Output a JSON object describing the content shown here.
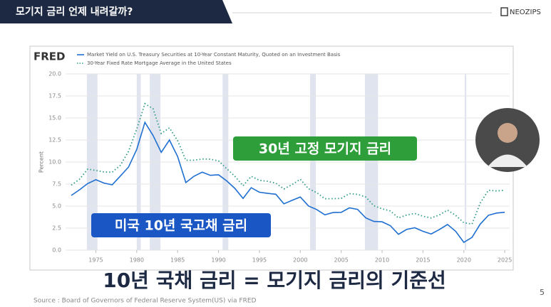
{
  "header": {
    "title": "모기지 금리 언제 내려갈까?",
    "brand": "NEOZIPS"
  },
  "chart_data": {
    "type": "line",
    "logo": "FRED",
    "y_label": "Percent",
    "x": [
      1972,
      1973,
      1974,
      1975,
      1976,
      1977,
      1978,
      1979,
      1980,
      1981,
      1982,
      1983,
      1984,
      1985,
      1986,
      1987,
      1988,
      1989,
      1990,
      1991,
      1992,
      1993,
      1994,
      1995,
      1996,
      1997,
      1998,
      1999,
      2000,
      2001,
      2002,
      2003,
      2004,
      2005,
      2006,
      2007,
      2008,
      2009,
      2010,
      2011,
      2012,
      2013,
      2014,
      2015,
      2016,
      2017,
      2018,
      2019,
      2020,
      2021,
      2022,
      2023,
      2024,
      2025
    ],
    "series": [
      {
        "name": "Market Yield on U.S. Treasury Securities at 10-Year Constant Maturity, Quoted on an Investment Basis",
        "color": "#1f6fd1",
        "style": "solid",
        "values": [
          6.21,
          6.85,
          7.56,
          7.99,
          7.61,
          7.42,
          8.41,
          9.43,
          11.43,
          14.5,
          13.01,
          11.1,
          12.5,
          10.62,
          7.67,
          8.39,
          8.85,
          8.49,
          8.55,
          7.86,
          7.01,
          5.87,
          7.09,
          6.57,
          6.44,
          6.35,
          5.26,
          5.65,
          6.03,
          5.02,
          4.61,
          4.01,
          4.27,
          4.29,
          4.8,
          4.63,
          3.66,
          3.26,
          3.22,
          2.78,
          1.8,
          2.35,
          2.54,
          2.14,
          1.84,
          2.33,
          2.91,
          2.14,
          0.89,
          1.45,
          2.95,
          3.96,
          4.21,
          4.3
        ]
      },
      {
        "name": "30-Year Fixed Rate Mortgage Average in the United States",
        "color": "#2f9a86",
        "style": "dotted",
        "values": [
          7.38,
          8.04,
          9.19,
          9.05,
          8.87,
          8.85,
          9.64,
          11.2,
          13.74,
          16.63,
          16.04,
          13.24,
          13.88,
          12.43,
          10.19,
          10.21,
          10.34,
          10.32,
          10.13,
          9.25,
          8.39,
          7.31,
          8.38,
          7.93,
          7.81,
          7.6,
          6.94,
          7.44,
          8.05,
          6.97,
          6.54,
          5.83,
          5.84,
          5.87,
          6.41,
          6.34,
          6.03,
          5.04,
          4.69,
          4.45,
          3.66,
          3.98,
          4.17,
          3.85,
          3.65,
          3.99,
          4.54,
          3.94,
          3.11,
          2.96,
          5.34,
          6.81,
          6.72,
          6.8
        ]
      }
    ],
    "recessions": [
      [
        1973.9,
        1975.2
      ],
      [
        1980.0,
        1980.5
      ],
      [
        1981.6,
        1982.9
      ],
      [
        1990.5,
        1991.2
      ],
      [
        2001.2,
        2001.9
      ],
      [
        2007.9,
        2009.5
      ],
      [
        2020.1,
        2020.3
      ]
    ],
    "xlim": [
      1971.3,
      2025.6
    ],
    "xticks": [
      1975,
      1980,
      1985,
      1990,
      1995,
      2000,
      2005,
      2010,
      2015,
      2020,
      2025
    ],
    "ylim": [
      0,
      20
    ],
    "yticks": [
      {
        "value": 0,
        "label": "0.0"
      },
      2.5,
      {
        "value": 5,
        "label": "5.0"
      },
      7.5,
      {
        "value": 10,
        "label": "10.0"
      },
      12.5,
      {
        "value": 15,
        "label": "15.0"
      },
      17.5,
      {
        "value": 20,
        "label": "20.0"
      }
    ],
    "grid": true
  },
  "overlays": {
    "mortgage_label": "30년 고정 모기지 금리",
    "treasury_label": "미국 10년 국고채 금리"
  },
  "caption": "10년 국채 금리 = 모기지 금리의 기준선",
  "source": "Source : Board of Governors of Federal Reserve System(US) via FRED",
  "page_number": "5"
}
